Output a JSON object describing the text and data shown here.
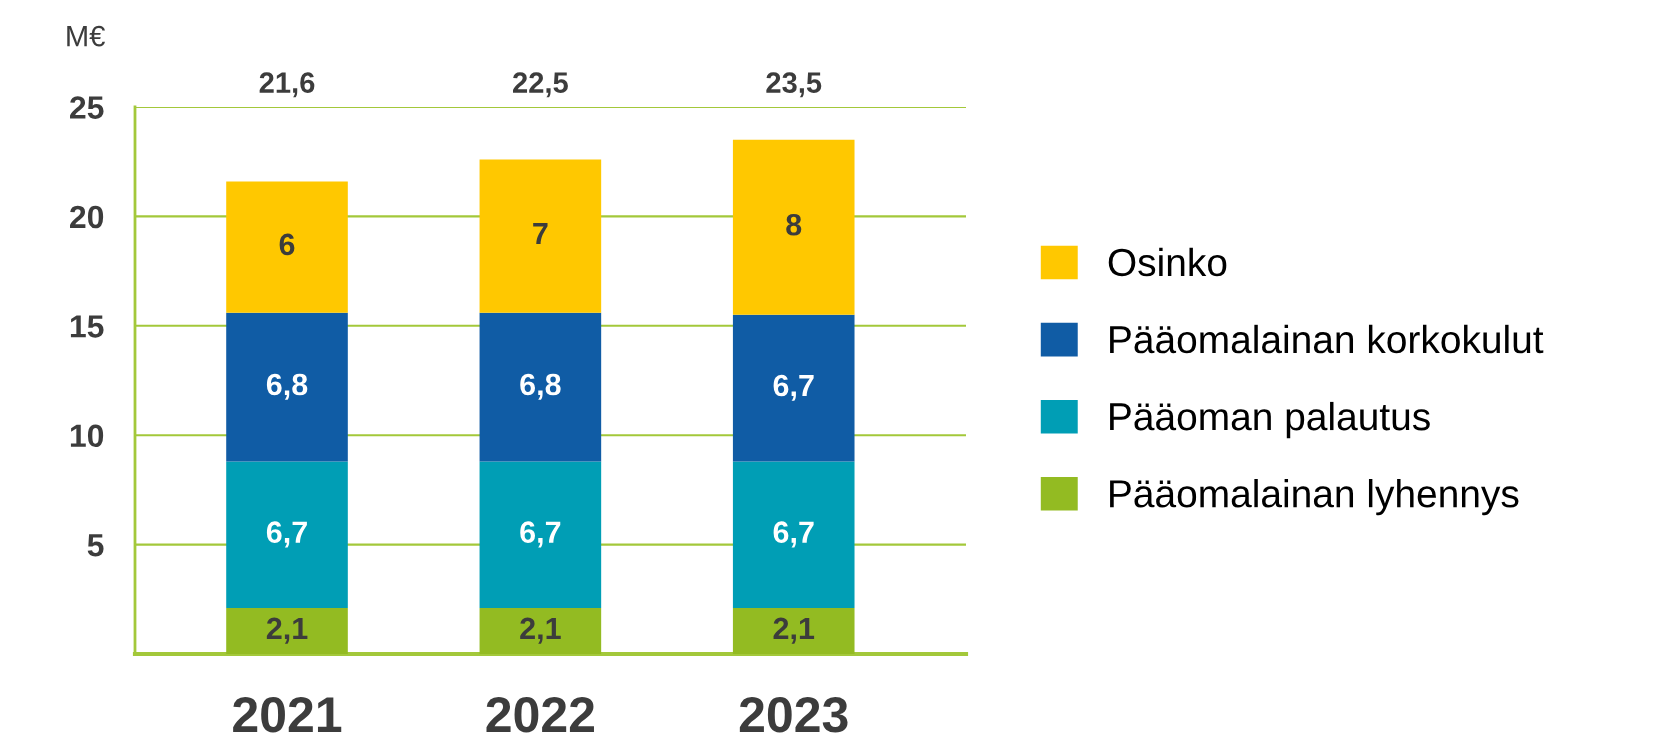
{
  "chart_data": {
    "type": "bar",
    "stacked": true,
    "ylabel": "M€",
    "categories": [
      "2021",
      "2022",
      "2023"
    ],
    "series": [
      {
        "name": "Pääomalainan lyhennys",
        "color": "#93bb22",
        "values": [
          2.1,
          2.1,
          2.1
        ],
        "value_labels": [
          "2,1",
          "2,1",
          "2,1"
        ]
      },
      {
        "name": "Pääoman palautus",
        "color": "#009eb5",
        "values": [
          6.7,
          6.7,
          6.7
        ],
        "value_labels": [
          "6,7",
          "6,7",
          "6,7"
        ]
      },
      {
        "name": "Pääomalainan korkokulut",
        "color": "#105ca5",
        "values": [
          6.8,
          6.8,
          6.7
        ],
        "value_labels": [
          "6,8",
          "6,8",
          "6,7"
        ]
      },
      {
        "name": "Osinko",
        "color": "#ffc800",
        "values": [
          6,
          7,
          8
        ],
        "value_labels": [
          "6",
          "7",
          "8"
        ]
      }
    ],
    "totals": [
      "21,6",
      "22,5",
      "23,5"
    ],
    "ylim": [
      0,
      25
    ],
    "yticks": [
      5,
      10,
      15,
      20,
      25
    ],
    "grid": "y",
    "legend": "right"
  }
}
